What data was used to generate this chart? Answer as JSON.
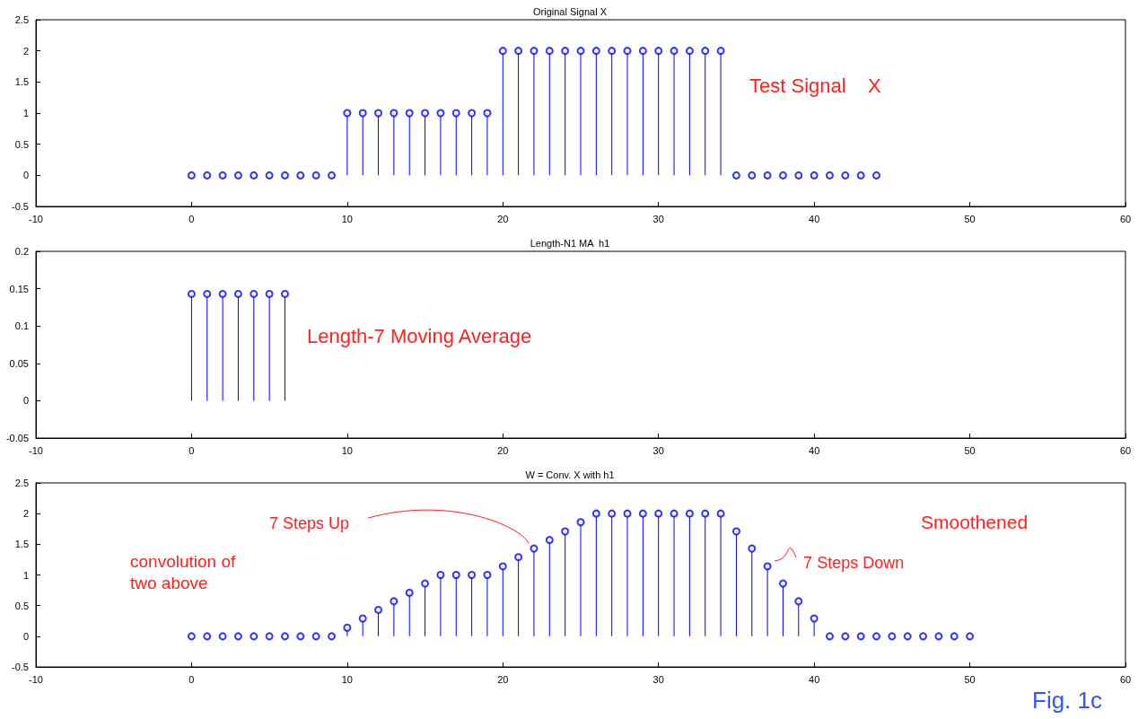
{
  "chart_data": [
    {
      "type": "lollipop",
      "title": "Original Signal X",
      "x": [
        0,
        1,
        2,
        3,
        4,
        5,
        6,
        7,
        8,
        9,
        10,
        11,
        12,
        13,
        14,
        15,
        16,
        17,
        18,
        19,
        20,
        21,
        22,
        23,
        24,
        25,
        26,
        27,
        28,
        29,
        30,
        31,
        32,
        33,
        34,
        35,
        36,
        37,
        38,
        39,
        40,
        41,
        42,
        43,
        44
      ],
      "series": [
        {
          "color": "#0000ff",
          "values": [
            0,
            0,
            0,
            0,
            0,
            0,
            0,
            0,
            0,
            0,
            1,
            1,
            1,
            1,
            1,
            1,
            1,
            1,
            1,
            1,
            2,
            2,
            2,
            2,
            2,
            2,
            2,
            2,
            2,
            2,
            2,
            2,
            2,
            2,
            2,
            0,
            0,
            0,
            0,
            0,
            0,
            0,
            0,
            0,
            0
          ]
        }
      ],
      "xlim": [
        -10,
        60
      ],
      "xticks": [
        -10,
        0,
        10,
        20,
        30,
        40,
        50,
        60
      ],
      "ylim": [
        -0.5,
        2.5
      ],
      "yticks": [
        -0.5,
        0,
        0.5,
        1,
        1.5,
        2,
        2.5
      ],
      "marker": "circle",
      "annotations": [
        "Test Signal    X"
      ]
    },
    {
      "type": "lollipop",
      "title": "Length-N1 MA  h1",
      "x": [
        0,
        1,
        2,
        3,
        4,
        5,
        6
      ],
      "series": [
        {
          "color": "#0000ff",
          "values": [
            0.143,
            0.143,
            0.143,
            0.143,
            0.143,
            0.143,
            0.143
          ]
        }
      ],
      "xlim": [
        -10,
        60
      ],
      "xticks": [
        -10,
        0,
        10,
        20,
        30,
        40,
        50,
        60
      ],
      "ylim": [
        -0.05,
        0.2
      ],
      "yticks": [
        -0.05,
        0,
        0.05,
        0.1,
        0.15,
        0.2
      ],
      "marker": "circle",
      "annotations": [
        "Length-7 Moving Average"
      ]
    },
    {
      "type": "lollipop",
      "title": "W = Conv. X with h1",
      "x": [
        0,
        1,
        2,
        3,
        4,
        5,
        6,
        7,
        8,
        9,
        10,
        11,
        12,
        13,
        14,
        15,
        16,
        17,
        18,
        19,
        20,
        21,
        22,
        23,
        24,
        25,
        26,
        27,
        28,
        29,
        30,
        31,
        32,
        33,
        34,
        35,
        36,
        37,
        38,
        39,
        40,
        41,
        42,
        43,
        44,
        45,
        46,
        47,
        48,
        49,
        50
      ],
      "series": [
        {
          "color": "#0000ff",
          "values": [
            0,
            0,
            0,
            0,
            0,
            0,
            0,
            0,
            0,
            0,
            0.14,
            0.29,
            0.43,
            0.57,
            0.71,
            0.86,
            1,
            1,
            1,
            1,
            1.14,
            1.29,
            1.43,
            1.57,
            1.71,
            1.86,
            2,
            2,
            2,
            2,
            2,
            2,
            2,
            2,
            2,
            1.71,
            1.43,
            1.14,
            0.86,
            0.57,
            0.29,
            0,
            0,
            0,
            0,
            0,
            0,
            0,
            0,
            0,
            0
          ]
        }
      ],
      "xlim": [
        -10,
        60
      ],
      "xticks": [
        -10,
        0,
        10,
        20,
        30,
        40,
        50,
        60
      ],
      "ylim": [
        -0.5,
        2.5
      ],
      "yticks": [
        -0.5,
        0,
        0.5,
        1,
        1.5,
        2,
        2.5
      ],
      "marker": "circle",
      "annotations": [
        "Smoothened",
        "convolution of\ntwo above",
        {
          "text": "7 Steps Up",
          "x": 22,
          "y": 1.43
        },
        {
          "text": "7 Steps Down",
          "x": 37,
          "y": 1.14
        },
        "Fig. 1c"
      ]
    }
  ]
}
